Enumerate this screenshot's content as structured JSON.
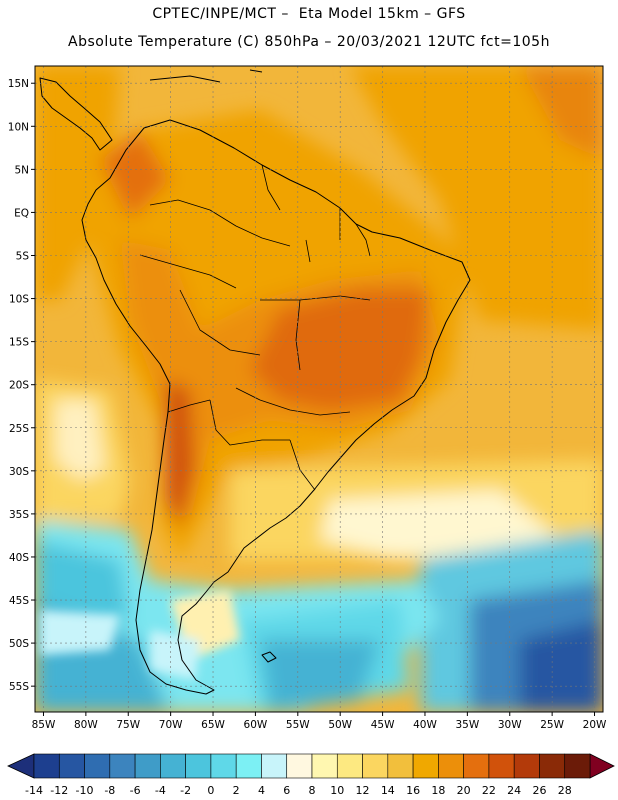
{
  "header": {
    "line1": "CPTEC/INPE/MCT –  Eta Model 15km – GFS",
    "line2": "Absolute Temperature (C) 850hPa – 20/03/2021 12UTC fct=105h"
  },
  "axes": {
    "lat_labels": [
      "15N",
      "10N",
      "5N",
      "EQ",
      "5S",
      "10S",
      "15S",
      "20S",
      "25S",
      "30S",
      "35S",
      "40S",
      "45S",
      "50S",
      "55S"
    ],
    "lat_values": [
      15,
      10,
      5,
      0,
      -5,
      -10,
      -15,
      -20,
      -25,
      -30,
      -35,
      -40,
      -45,
      -50,
      -55
    ],
    "lon_labels": [
      "85W",
      "80W",
      "75W",
      "70W",
      "65W",
      "60W",
      "55W",
      "50W",
      "45W",
      "40W",
      "35W",
      "30W",
      "25W",
      "20W"
    ],
    "lon_values": [
      -85,
      -80,
      -75,
      -70,
      -65,
      -60,
      -55,
      -50,
      -45,
      -40,
      -35,
      -30,
      -25,
      -20
    ],
    "lat_range": [
      -58,
      17
    ],
    "lon_range": [
      -86,
      -19
    ]
  },
  "colorbar": {
    "labels": [
      "-14",
      "-12",
      "-10",
      "-8",
      "-6",
      "-4",
      "-2",
      "0",
      "2",
      "4",
      "6",
      "8",
      "10",
      "12",
      "14",
      "16",
      "18",
      "20",
      "22",
      "24",
      "26",
      "28"
    ],
    "colors": [
      "#1d3f8f",
      "#2656a2",
      "#2f6db1",
      "#3c84be",
      "#3f9cc8",
      "#45b2d3",
      "#4cc5dd",
      "#5fd8e8",
      "#7cf0f4",
      "#c8f4fa",
      "#fff8e0",
      "#fff7b0",
      "#fde981",
      "#fbd660",
      "#f2bf3c",
      "#f0a800",
      "#ec8f0a",
      "#e46f0e",
      "#d1520b",
      "#b33a0a",
      "#8a2a07",
      "#6b1b08"
    ],
    "under_color": "#1d2f7a",
    "over_color": "#800020"
  }
}
